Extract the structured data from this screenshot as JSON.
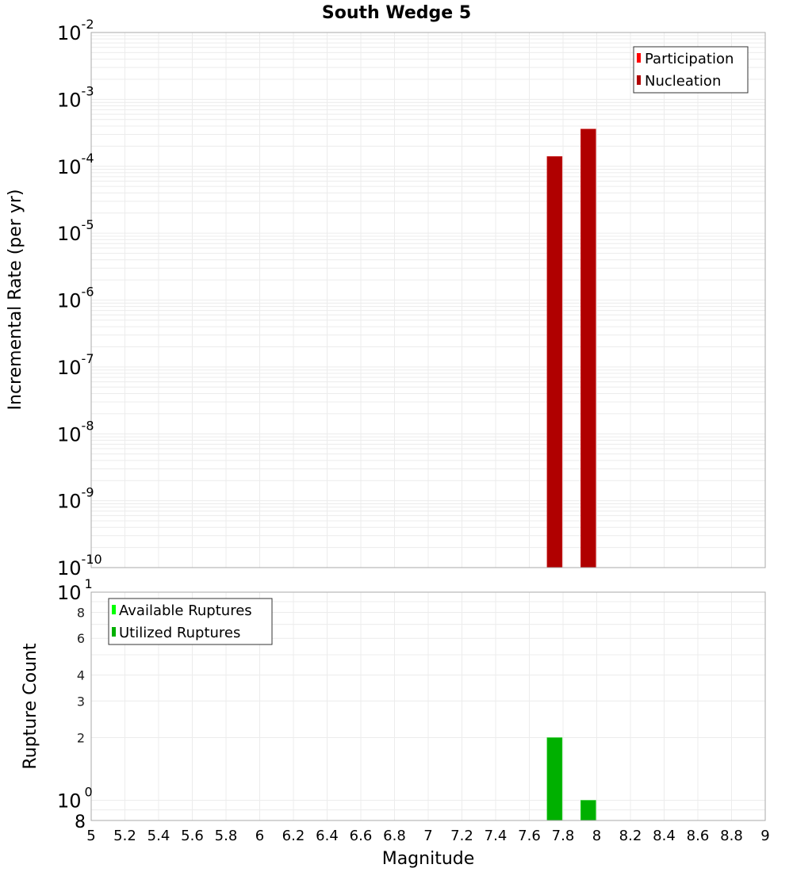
{
  "chart_data": [
    {
      "type": "bar",
      "title": "South Wedge 5",
      "xlabel": "Magnitude",
      "ylabel": "Incremental Rate (per yr)",
      "yscale": "log",
      "ylim": [
        1e-10,
        0.01
      ],
      "xlim": [
        5,
        9
      ],
      "grid": true,
      "legend_position": "top-right",
      "legend": [
        {
          "label": "Participation",
          "color": "#ff0000"
        },
        {
          "label": "Nucleation",
          "color": "#b00000"
        }
      ],
      "y_ticks": [
        {
          "base": "10",
          "exp": "-2"
        },
        {
          "base": "10",
          "exp": "-3"
        },
        {
          "base": "10",
          "exp": "-4"
        },
        {
          "base": "10",
          "exp": "-5"
        },
        {
          "base": "10",
          "exp": "-6"
        },
        {
          "base": "10",
          "exp": "-7"
        },
        {
          "base": "10",
          "exp": "-8"
        },
        {
          "base": "10",
          "exp": "-9"
        },
        {
          "base": "10",
          "exp": "-10"
        }
      ],
      "series": [
        {
          "name": "Participation",
          "x": [
            7.75,
            7.95
          ],
          "values": [
            0.00014,
            0.00036
          ]
        },
        {
          "name": "Nucleation",
          "x": [
            7.75,
            7.95
          ],
          "values": [
            0.00014,
            0.00036
          ]
        }
      ]
    },
    {
      "type": "bar",
      "title": "",
      "xlabel": "Magnitude",
      "ylabel": "Rupture Count",
      "yscale": "log",
      "ylim": [
        0.8,
        10
      ],
      "xlim": [
        5,
        9
      ],
      "grid": true,
      "legend_position": "top-left",
      "legend": [
        {
          "label": "Available Ruptures",
          "color": "#00ff00"
        },
        {
          "label": "Utilized Ruptures",
          "color": "#00b000"
        }
      ],
      "y_ticks_major": [
        {
          "base": "10",
          "exp": "1"
        },
        {
          "base": "10",
          "exp": "0"
        }
      ],
      "y_ticks_minor": [
        "8",
        "6",
        "4",
        "3",
        "2",
        "8"
      ],
      "series": [
        {
          "name": "Available Ruptures",
          "x": [
            7.75,
            7.95
          ],
          "values": [
            2,
            1
          ]
        },
        {
          "name": "Utilized Ruptures",
          "x": [
            7.75,
            7.95
          ],
          "values": [
            2,
            1
          ]
        }
      ]
    }
  ],
  "x_ticks": [
    "5",
    "5.2",
    "5.4",
    "5.6",
    "5.8",
    "6",
    "6.2",
    "6.4",
    "6.6",
    "6.8",
    "7",
    "7.2",
    "7.4",
    "7.6",
    "7.8",
    "8",
    "8.2",
    "8.4",
    "8.6",
    "8.8",
    "9"
  ]
}
